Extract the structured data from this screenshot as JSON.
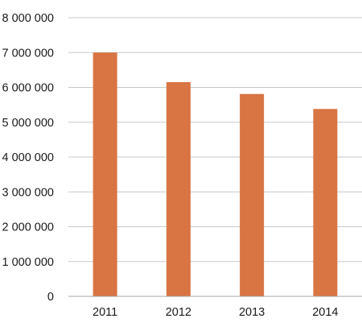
{
  "chart_data": {
    "type": "bar",
    "title": "",
    "xlabel": "",
    "ylabel": "",
    "categories": [
      "2011",
      "2012",
      "2013",
      "2014"
    ],
    "values": [
      7000000,
      6150000,
      5810000,
      5380000
    ],
    "ylim": [
      0,
      8000000
    ],
    "y_ticks": [
      0,
      1000000,
      2000000,
      3000000,
      4000000,
      5000000,
      6000000,
      7000000,
      8000000
    ],
    "y_tick_labels": [
      "0",
      "1 000 000",
      "2 000 000",
      "3 000 000",
      "4 000 000",
      "5 000 000",
      "6 000 000",
      "7 000 000",
      "8 000 000"
    ],
    "grid": true,
    "legend": "none",
    "bar_color": "#d97443",
    "grid_color": "#c8c8c8",
    "axis_color": "#a6a6a6"
  }
}
